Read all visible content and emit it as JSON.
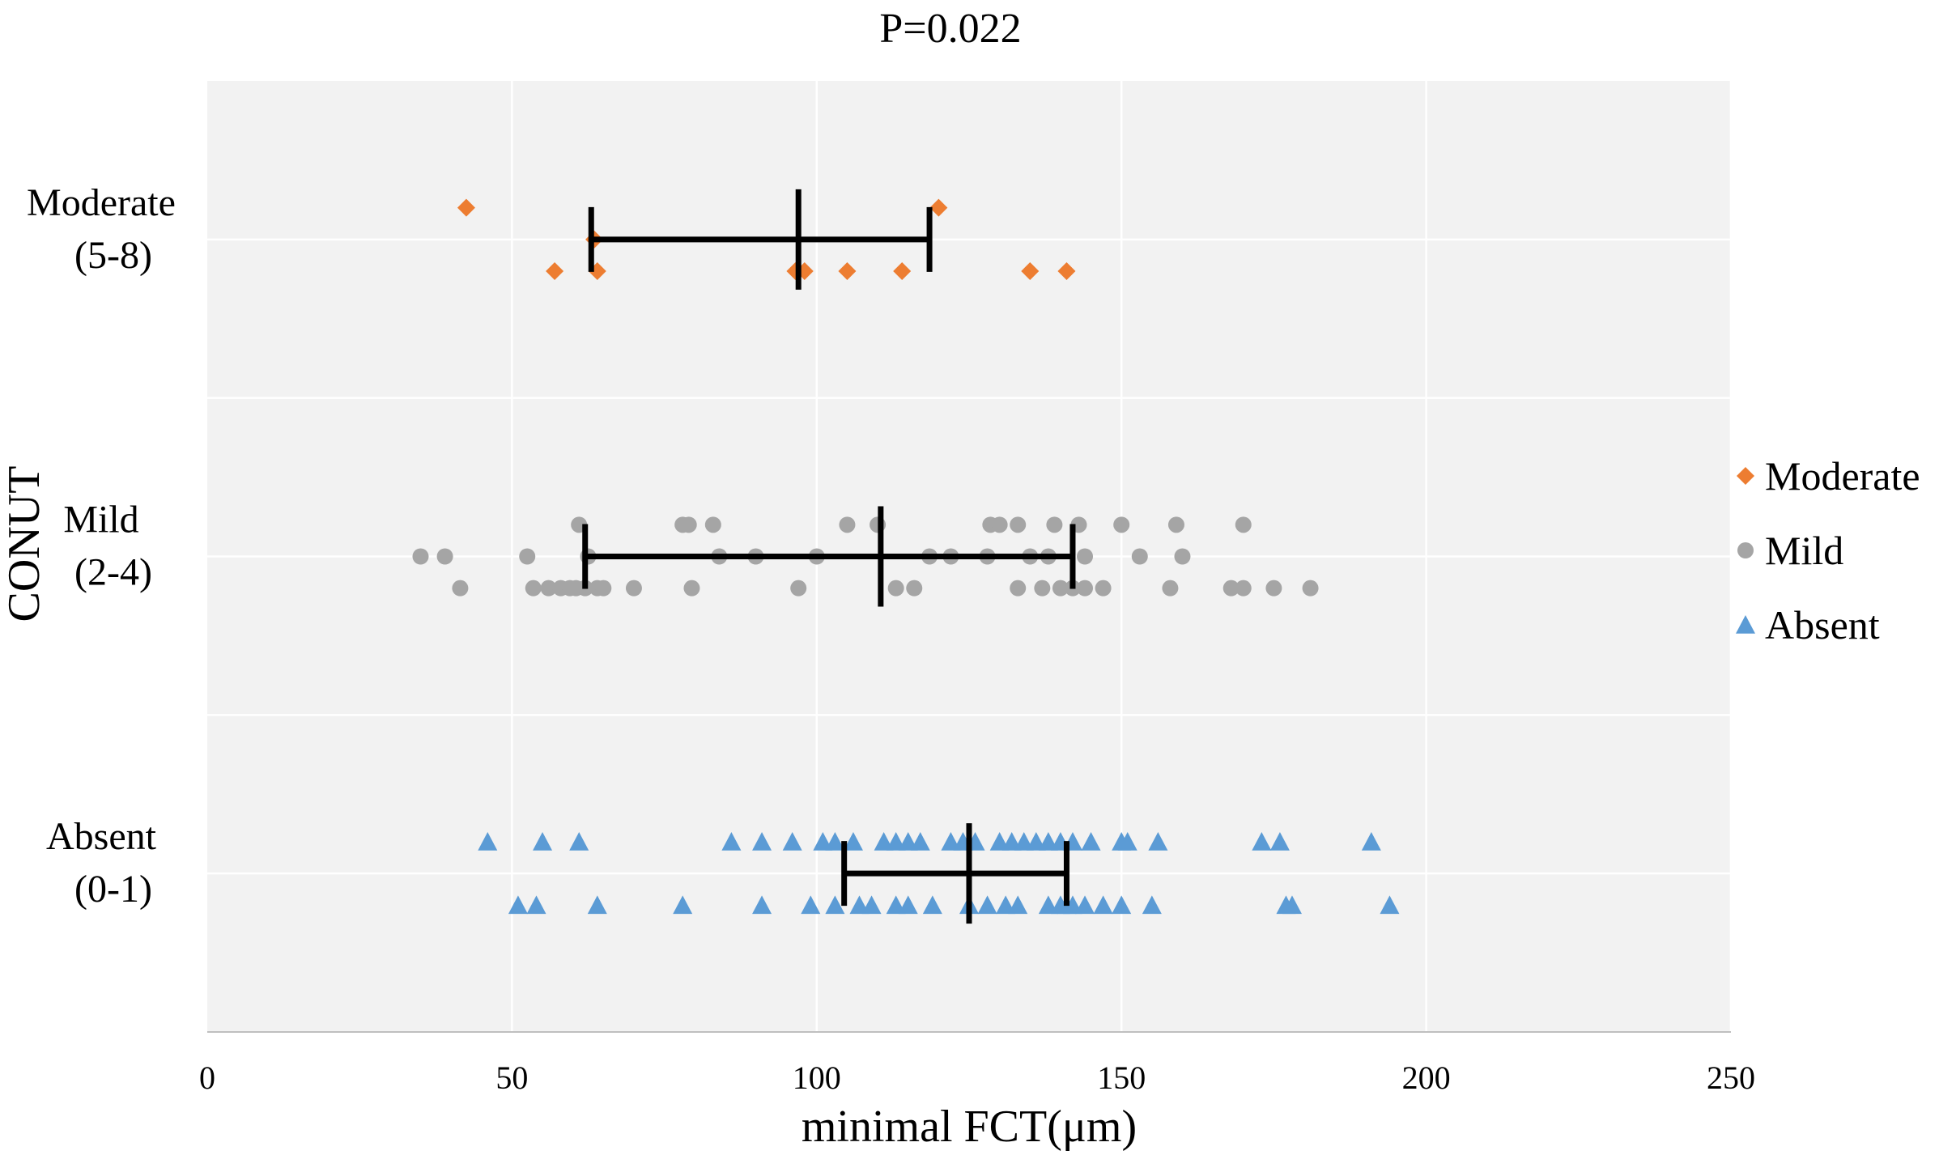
{
  "chart_data": {
    "type": "scatter",
    "title": "P=0.022",
    "xlabel": "minimal FCT(μm)",
    "ylabel": "CONUT",
    "xlim": [
      0,
      250
    ],
    "x_ticks": [
      "0",
      "50",
      "100",
      "150",
      "200",
      "250"
    ],
    "categories": [
      {
        "line1": "Absent",
        "line2": "(0-1)"
      },
      {
        "line1": "Mild",
        "line2": "(2-4)"
      },
      {
        "line1": "Moderate",
        "line2": "(5-8)"
      }
    ],
    "grid": true,
    "legend_position": "right",
    "series": [
      {
        "name": "Moderate",
        "marker": "diamond",
        "color": "#ED7D31",
        "category_index": 2,
        "values": [
          {
            "x": 42.5,
            "dy": 0.1
          },
          {
            "x": 63.5,
            "dy": 0.0
          },
          {
            "x": 57,
            "dy": -0.1
          },
          {
            "x": 64,
            "dy": -0.1
          },
          {
            "x": 96.5,
            "dy": -0.1
          },
          {
            "x": 98,
            "dy": -0.1
          },
          {
            "x": 105,
            "dy": -0.1
          },
          {
            "x": 114,
            "dy": -0.1
          },
          {
            "x": 120,
            "dy": 0.1
          },
          {
            "x": 135,
            "dy": -0.1
          },
          {
            "x": 141,
            "dy": -0.1
          }
        ],
        "summary": {
          "mean": 97,
          "low": 63,
          "high": 118.5
        }
      },
      {
        "name": "Mild",
        "marker": "circle",
        "color": "#A5A5A5",
        "category_index": 1,
        "values": [
          {
            "x": 35,
            "dy": 0
          },
          {
            "x": 39,
            "dy": 0
          },
          {
            "x": 41.5,
            "dy": -0.1
          },
          {
            "x": 52.5,
            "dy": 0
          },
          {
            "x": 53.5,
            "dy": -0.1
          },
          {
            "x": 56,
            "dy": -0.1
          },
          {
            "x": 58,
            "dy": -0.1
          },
          {
            "x": 59.5,
            "dy": -0.1
          },
          {
            "x": 60.5,
            "dy": -0.1
          },
          {
            "x": 61,
            "dy": 0.1
          },
          {
            "x": 62,
            "dy": -0.1
          },
          {
            "x": 62.5,
            "dy": 0
          },
          {
            "x": 64,
            "dy": -0.1
          },
          {
            "x": 65,
            "dy": -0.1
          },
          {
            "x": 70,
            "dy": -0.1
          },
          {
            "x": 78,
            "dy": 0.1
          },
          {
            "x": 79,
            "dy": 0.1
          },
          {
            "x": 79.5,
            "dy": -0.1
          },
          {
            "x": 83,
            "dy": 0.1
          },
          {
            "x": 84,
            "dy": 0
          },
          {
            "x": 90,
            "dy": 0
          },
          {
            "x": 97,
            "dy": -0.1
          },
          {
            "x": 100,
            "dy": 0
          },
          {
            "x": 105,
            "dy": 0.1
          },
          {
            "x": 110,
            "dy": 0.1
          },
          {
            "x": 113,
            "dy": -0.1
          },
          {
            "x": 116,
            "dy": -0.1
          },
          {
            "x": 118.5,
            "dy": 0
          },
          {
            "x": 122,
            "dy": 0
          },
          {
            "x": 128,
            "dy": 0
          },
          {
            "x": 128.5,
            "dy": 0.1
          },
          {
            "x": 130,
            "dy": 0.1
          },
          {
            "x": 133,
            "dy": 0.1
          },
          {
            "x": 133,
            "dy": -0.1
          },
          {
            "x": 135,
            "dy": 0
          },
          {
            "x": 137,
            "dy": -0.1
          },
          {
            "x": 138,
            "dy": 0
          },
          {
            "x": 139,
            "dy": 0.1
          },
          {
            "x": 140,
            "dy": -0.1
          },
          {
            "x": 142,
            "dy": -0.1
          },
          {
            "x": 143,
            "dy": 0.1
          },
          {
            "x": 144,
            "dy": 0
          },
          {
            "x": 144,
            "dy": -0.1
          },
          {
            "x": 147,
            "dy": -0.1
          },
          {
            "x": 150,
            "dy": 0.1
          },
          {
            "x": 153,
            "dy": 0
          },
          {
            "x": 158,
            "dy": -0.1
          },
          {
            "x": 159,
            "dy": 0.1
          },
          {
            "x": 160,
            "dy": 0
          },
          {
            "x": 168,
            "dy": -0.1
          },
          {
            "x": 170,
            "dy": 0.1
          },
          {
            "x": 170,
            "dy": -0.1
          },
          {
            "x": 175,
            "dy": -0.1
          },
          {
            "x": 181,
            "dy": -0.1
          }
        ],
        "summary": {
          "mean": 110.5,
          "low": 62,
          "high": 142
        }
      },
      {
        "name": "Absent",
        "marker": "triangle",
        "color": "#5B9BD5",
        "category_index": 0,
        "values": [
          {
            "x": 46,
            "dy": 0.1
          },
          {
            "x": 51,
            "dy": -0.1
          },
          {
            "x": 54,
            "dy": -0.1
          },
          {
            "x": 55,
            "dy": 0.1
          },
          {
            "x": 61,
            "dy": 0.1
          },
          {
            "x": 64,
            "dy": -0.1
          },
          {
            "x": 78,
            "dy": -0.1
          },
          {
            "x": 86,
            "dy": 0.1
          },
          {
            "x": 91,
            "dy": 0.1
          },
          {
            "x": 91,
            "dy": -0.1
          },
          {
            "x": 96,
            "dy": 0.1
          },
          {
            "x": 99,
            "dy": -0.1
          },
          {
            "x": 101,
            "dy": 0.1
          },
          {
            "x": 103,
            "dy": 0.1
          },
          {
            "x": 103,
            "dy": -0.1
          },
          {
            "x": 106,
            "dy": 0.1
          },
          {
            "x": 107,
            "dy": -0.1
          },
          {
            "x": 109,
            "dy": -0.1
          },
          {
            "x": 111,
            "dy": 0.1
          },
          {
            "x": 113,
            "dy": 0.1
          },
          {
            "x": 113,
            "dy": -0.1
          },
          {
            "x": 115,
            "dy": 0.1
          },
          {
            "x": 115,
            "dy": -0.1
          },
          {
            "x": 117,
            "dy": 0.1
          },
          {
            "x": 119,
            "dy": -0.1
          },
          {
            "x": 122,
            "dy": 0.1
          },
          {
            "x": 124,
            "dy": 0.1
          },
          {
            "x": 125,
            "dy": -0.1
          },
          {
            "x": 126,
            "dy": 0.1
          },
          {
            "x": 128,
            "dy": -0.1
          },
          {
            "x": 130,
            "dy": 0.1
          },
          {
            "x": 131,
            "dy": -0.1
          },
          {
            "x": 132,
            "dy": 0.1
          },
          {
            "x": 133,
            "dy": -0.1
          },
          {
            "x": 134,
            "dy": 0.1
          },
          {
            "x": 136,
            "dy": 0.1
          },
          {
            "x": 138,
            "dy": 0.1
          },
          {
            "x": 138,
            "dy": -0.1
          },
          {
            "x": 140,
            "dy": -0.1
          },
          {
            "x": 140,
            "dy": 0.1
          },
          {
            "x": 141,
            "dy": -0.1
          },
          {
            "x": 142,
            "dy": 0.1
          },
          {
            "x": 142,
            "dy": -0.1
          },
          {
            "x": 144,
            "dy": -0.1
          },
          {
            "x": 145,
            "dy": 0.1
          },
          {
            "x": 147,
            "dy": -0.1
          },
          {
            "x": 150,
            "dy": 0.1
          },
          {
            "x": 150,
            "dy": -0.1
          },
          {
            "x": 151,
            "dy": 0.1
          },
          {
            "x": 155,
            "dy": -0.1
          },
          {
            "x": 156,
            "dy": 0.1
          },
          {
            "x": 173,
            "dy": 0.1
          },
          {
            "x": 176,
            "dy": 0.1
          },
          {
            "x": 177,
            "dy": -0.1
          },
          {
            "x": 178,
            "dy": -0.1
          },
          {
            "x": 191,
            "dy": 0.1
          },
          {
            "x": 194,
            "dy": -0.1
          }
        ],
        "summary": {
          "mean": 125,
          "low": 104.5,
          "high": 141
        }
      }
    ]
  }
}
